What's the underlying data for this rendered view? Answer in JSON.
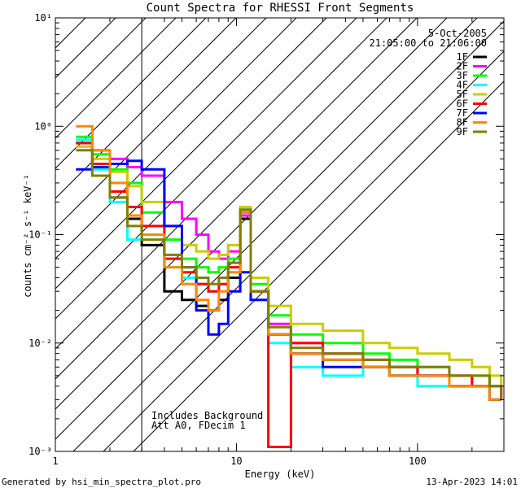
{
  "chart_data": {
    "type": "line",
    "title": "Count Spectra for RHESSI Front Segments",
    "xlabel": "Energy (keV)",
    "ylabel": "counts cm⁻² s⁻¹ keV⁻¹",
    "xscale": "log",
    "yscale": "log",
    "xlim": [
      1,
      300
    ],
    "ylim": [
      0.001,
      10
    ],
    "x_ticks": [
      {
        "value": 1,
        "label": "1"
      },
      {
        "value": 10,
        "label": "10"
      },
      {
        "value": 100,
        "label": "100"
      }
    ],
    "y_ticks": [
      {
        "value": 0.001,
        "label": "10⁻³"
      },
      {
        "value": 0.01,
        "label": "10⁻²"
      },
      {
        "value": 0.1,
        "label": "10⁻¹"
      },
      {
        "value": 1,
        "label": "10⁰"
      },
      {
        "value": 10,
        "label": "10¹"
      }
    ],
    "date": "5-Oct-2005",
    "time_range": "21:05:00 to 21:06:00",
    "shaded_region_max_keV": 3,
    "annotations": [
      "Includes Background",
      "Att A0, FDecim 1"
    ],
    "legend_position": "top-right",
    "series": [
      {
        "name": "1F",
        "color": "#000000",
        "x": [
          1.3,
          1.6,
          2.0,
          2.5,
          3.0,
          4.0,
          5.0,
          6.0,
          7.0,
          8.0,
          9.0,
          10.5,
          12.0,
          15.0,
          20.0,
          30.0,
          50.0,
          70.0,
          100.0,
          150.0,
          200.0,
          250.0,
          290.0
        ],
        "y": [
          0.7,
          0.45,
          0.22,
          0.14,
          0.08,
          0.03,
          0.025,
          0.022,
          0.02,
          0.025,
          0.04,
          0.14,
          0.03,
          0.012,
          0.008,
          0.007,
          0.006,
          0.005,
          0.005,
          0.004,
          0.004,
          0.003,
          0.003
        ]
      },
      {
        "name": "2F",
        "color": "#ff00ff",
        "x": [
          1.3,
          1.6,
          2.0,
          2.5,
          3.0,
          4.0,
          5.0,
          6.0,
          7.0,
          8.0,
          9.0,
          10.5,
          12.0,
          15.0,
          20.0,
          30.0,
          50.0,
          70.0,
          100.0,
          150.0,
          200.0,
          250.0,
          290.0
        ],
        "y": [
          0.7,
          0.6,
          0.5,
          0.42,
          0.35,
          0.2,
          0.14,
          0.1,
          0.07,
          0.06,
          0.07,
          0.15,
          0.03,
          0.015,
          0.01,
          0.008,
          0.007,
          0.006,
          0.005,
          0.005,
          0.004,
          0.004,
          0.003
        ]
      },
      {
        "name": "3F",
        "color": "#00ff00",
        "x": [
          1.3,
          1.6,
          2.0,
          2.5,
          3.0,
          4.0,
          5.0,
          6.0,
          7.0,
          8.0,
          9.0,
          10.5,
          12.0,
          15.0,
          20.0,
          30.0,
          50.0,
          70.0,
          100.0,
          150.0,
          200.0,
          250.0,
          290.0
        ],
        "y": [
          0.8,
          0.55,
          0.4,
          0.3,
          0.16,
          0.09,
          0.06,
          0.05,
          0.045,
          0.05,
          0.06,
          0.16,
          0.035,
          0.018,
          0.012,
          0.01,
          0.008,
          0.007,
          0.006,
          0.005,
          0.005,
          0.004,
          0.004
        ]
      },
      {
        "name": "4F",
        "color": "#00ffff",
        "x": [
          1.3,
          1.6,
          2.0,
          2.5,
          3.0,
          4.0,
          5.0,
          6.0,
          7.0,
          8.0,
          9.0,
          10.5,
          12.0,
          15.0,
          20.0,
          30.0,
          50.0,
          70.0,
          100.0,
          150.0,
          200.0,
          250.0,
          290.0
        ],
        "y": [
          0.75,
          0.4,
          0.2,
          0.09,
          0.1,
          0.05,
          0.04,
          0.035,
          0.03,
          0.04,
          0.05,
          0.17,
          0.025,
          0.01,
          0.006,
          0.005,
          0.006,
          0.005,
          0.004,
          0.004,
          0.004,
          0.003,
          0.003
        ]
      },
      {
        "name": "5F",
        "color": "#cccc00",
        "x": [
          1.3,
          1.6,
          2.0,
          2.5,
          3.0,
          4.0,
          5.0,
          6.0,
          7.0,
          8.0,
          9.0,
          10.5,
          12.0,
          15.0,
          20.0,
          30.0,
          50.0,
          70.0,
          100.0,
          150.0,
          200.0,
          250.0,
          290.0
        ],
        "y": [
          0.65,
          0.5,
          0.38,
          0.28,
          0.2,
          0.12,
          0.08,
          0.07,
          0.06,
          0.065,
          0.08,
          0.18,
          0.04,
          0.022,
          0.015,
          0.013,
          0.01,
          0.009,
          0.008,
          0.007,
          0.006,
          0.005,
          0.004
        ]
      },
      {
        "name": "6F",
        "color": "#ff0000",
        "x": [
          1.3,
          1.6,
          2.0,
          2.5,
          3.0,
          4.0,
          5.0,
          6.0,
          7.0,
          8.0,
          9.0,
          10.5,
          12.0,
          15.0,
          20.0,
          30.0,
          50.0,
          70.0,
          100.0,
          150.0,
          200.0,
          250.0,
          290.0
        ],
        "y": [
          0.7,
          0.45,
          0.25,
          0.18,
          0.12,
          0.06,
          0.045,
          0.035,
          0.03,
          0.035,
          0.05,
          0.16,
          0.03,
          0.0011,
          0.01,
          0.008,
          0.007,
          0.006,
          0.005,
          0.005,
          0.004,
          0.004,
          0.003
        ]
      },
      {
        "name": "7F",
        "color": "#0000ff",
        "x": [
          1.3,
          1.6,
          2.0,
          2.5,
          3.0,
          4.0,
          5.0,
          6.0,
          7.0,
          8.0,
          9.0,
          10.5,
          12.0,
          15.0,
          20.0,
          30.0,
          50.0,
          70.0,
          100.0,
          150.0,
          200.0,
          250.0,
          290.0
        ],
        "y": [
          0.4,
          0.42,
          0.45,
          0.48,
          0.4,
          0.12,
          0.05,
          0.02,
          0.012,
          0.015,
          0.03,
          0.045,
          0.025,
          0.012,
          0.008,
          0.006,
          0.006,
          0.005,
          0.005,
          0.004,
          0.004,
          0.003,
          0.003
        ]
      },
      {
        "name": "8F",
        "color": "#ff8800",
        "x": [
          1.3,
          1.6,
          2.0,
          2.5,
          3.0,
          4.0,
          5.0,
          6.0,
          7.0,
          8.0,
          9.0,
          10.5,
          12.0,
          15.0,
          20.0,
          30.0,
          50.0,
          70.0,
          100.0,
          150.0,
          200.0,
          250.0,
          290.0
        ],
        "y": [
          1.0,
          0.6,
          0.3,
          0.15,
          0.1,
          0.05,
          0.035,
          0.025,
          0.02,
          0.03,
          0.045,
          0.16,
          0.03,
          0.012,
          0.008,
          0.007,
          0.006,
          0.005,
          0.005,
          0.004,
          0.004,
          0.003,
          0.003
        ]
      },
      {
        "name": "9F",
        "color": "#808000",
        "x": [
          1.3,
          1.6,
          2.0,
          2.5,
          3.0,
          4.0,
          5.0,
          6.0,
          7.0,
          8.0,
          9.0,
          10.5,
          12.0,
          15.0,
          20.0,
          30.0,
          50.0,
          70.0,
          100.0,
          150.0,
          200.0,
          250.0,
          290.0
        ],
        "y": [
          0.6,
          0.35,
          0.22,
          0.12,
          0.09,
          0.065,
          0.05,
          0.04,
          0.035,
          0.04,
          0.055,
          0.17,
          0.03,
          0.014,
          0.009,
          0.008,
          0.007,
          0.006,
          0.006,
          0.005,
          0.005,
          0.004,
          0.003
        ]
      }
    ]
  },
  "footer": {
    "left": "Generated by hsi_min_spectra_plot.pro",
    "right": "13-Apr-2023 14:01"
  }
}
